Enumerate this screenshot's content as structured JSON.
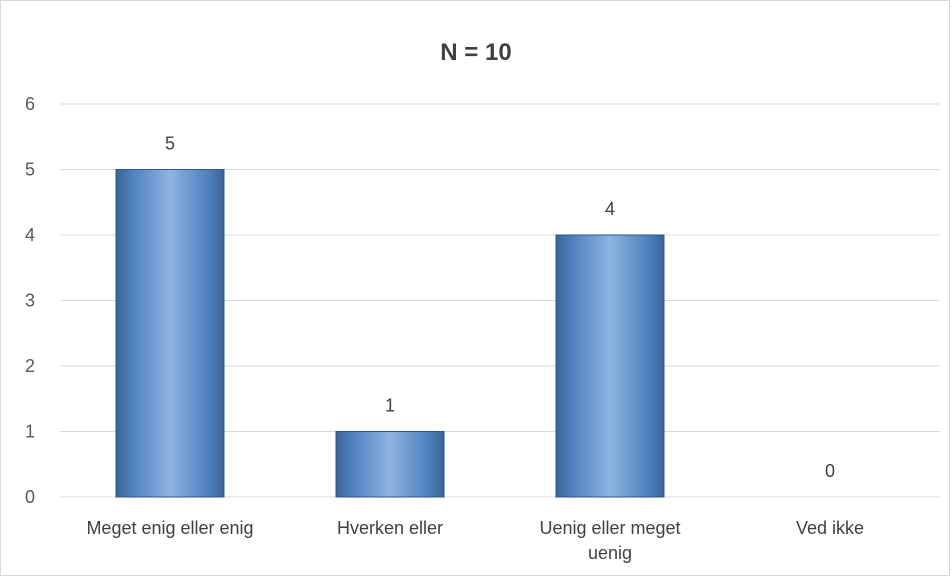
{
  "chart_data": {
    "type": "bar",
    "title": "N = 10",
    "categories": [
      [
        "Meget enig eller enig"
      ],
      [
        "Hverken eller"
      ],
      [
        "Uenig eller meget",
        "uenig"
      ],
      [
        "Ved ikke"
      ]
    ],
    "values": [
      5,
      1,
      4,
      0
    ],
    "data_labels": [
      "5",
      "1",
      "4",
      "0"
    ],
    "ylim": [
      0,
      6
    ],
    "yticks": [
      0,
      1,
      2,
      3,
      4,
      5,
      6
    ],
    "grid": true,
    "legend": "none",
    "colors": {
      "bar_top": "#8eb4e3",
      "bar_mid": "#4f81bd",
      "bar_bottom": "#3a6496",
      "bar_edge": "#2f5587",
      "grid": "#d9d9d9",
      "frame": "#d9d9d9"
    }
  }
}
